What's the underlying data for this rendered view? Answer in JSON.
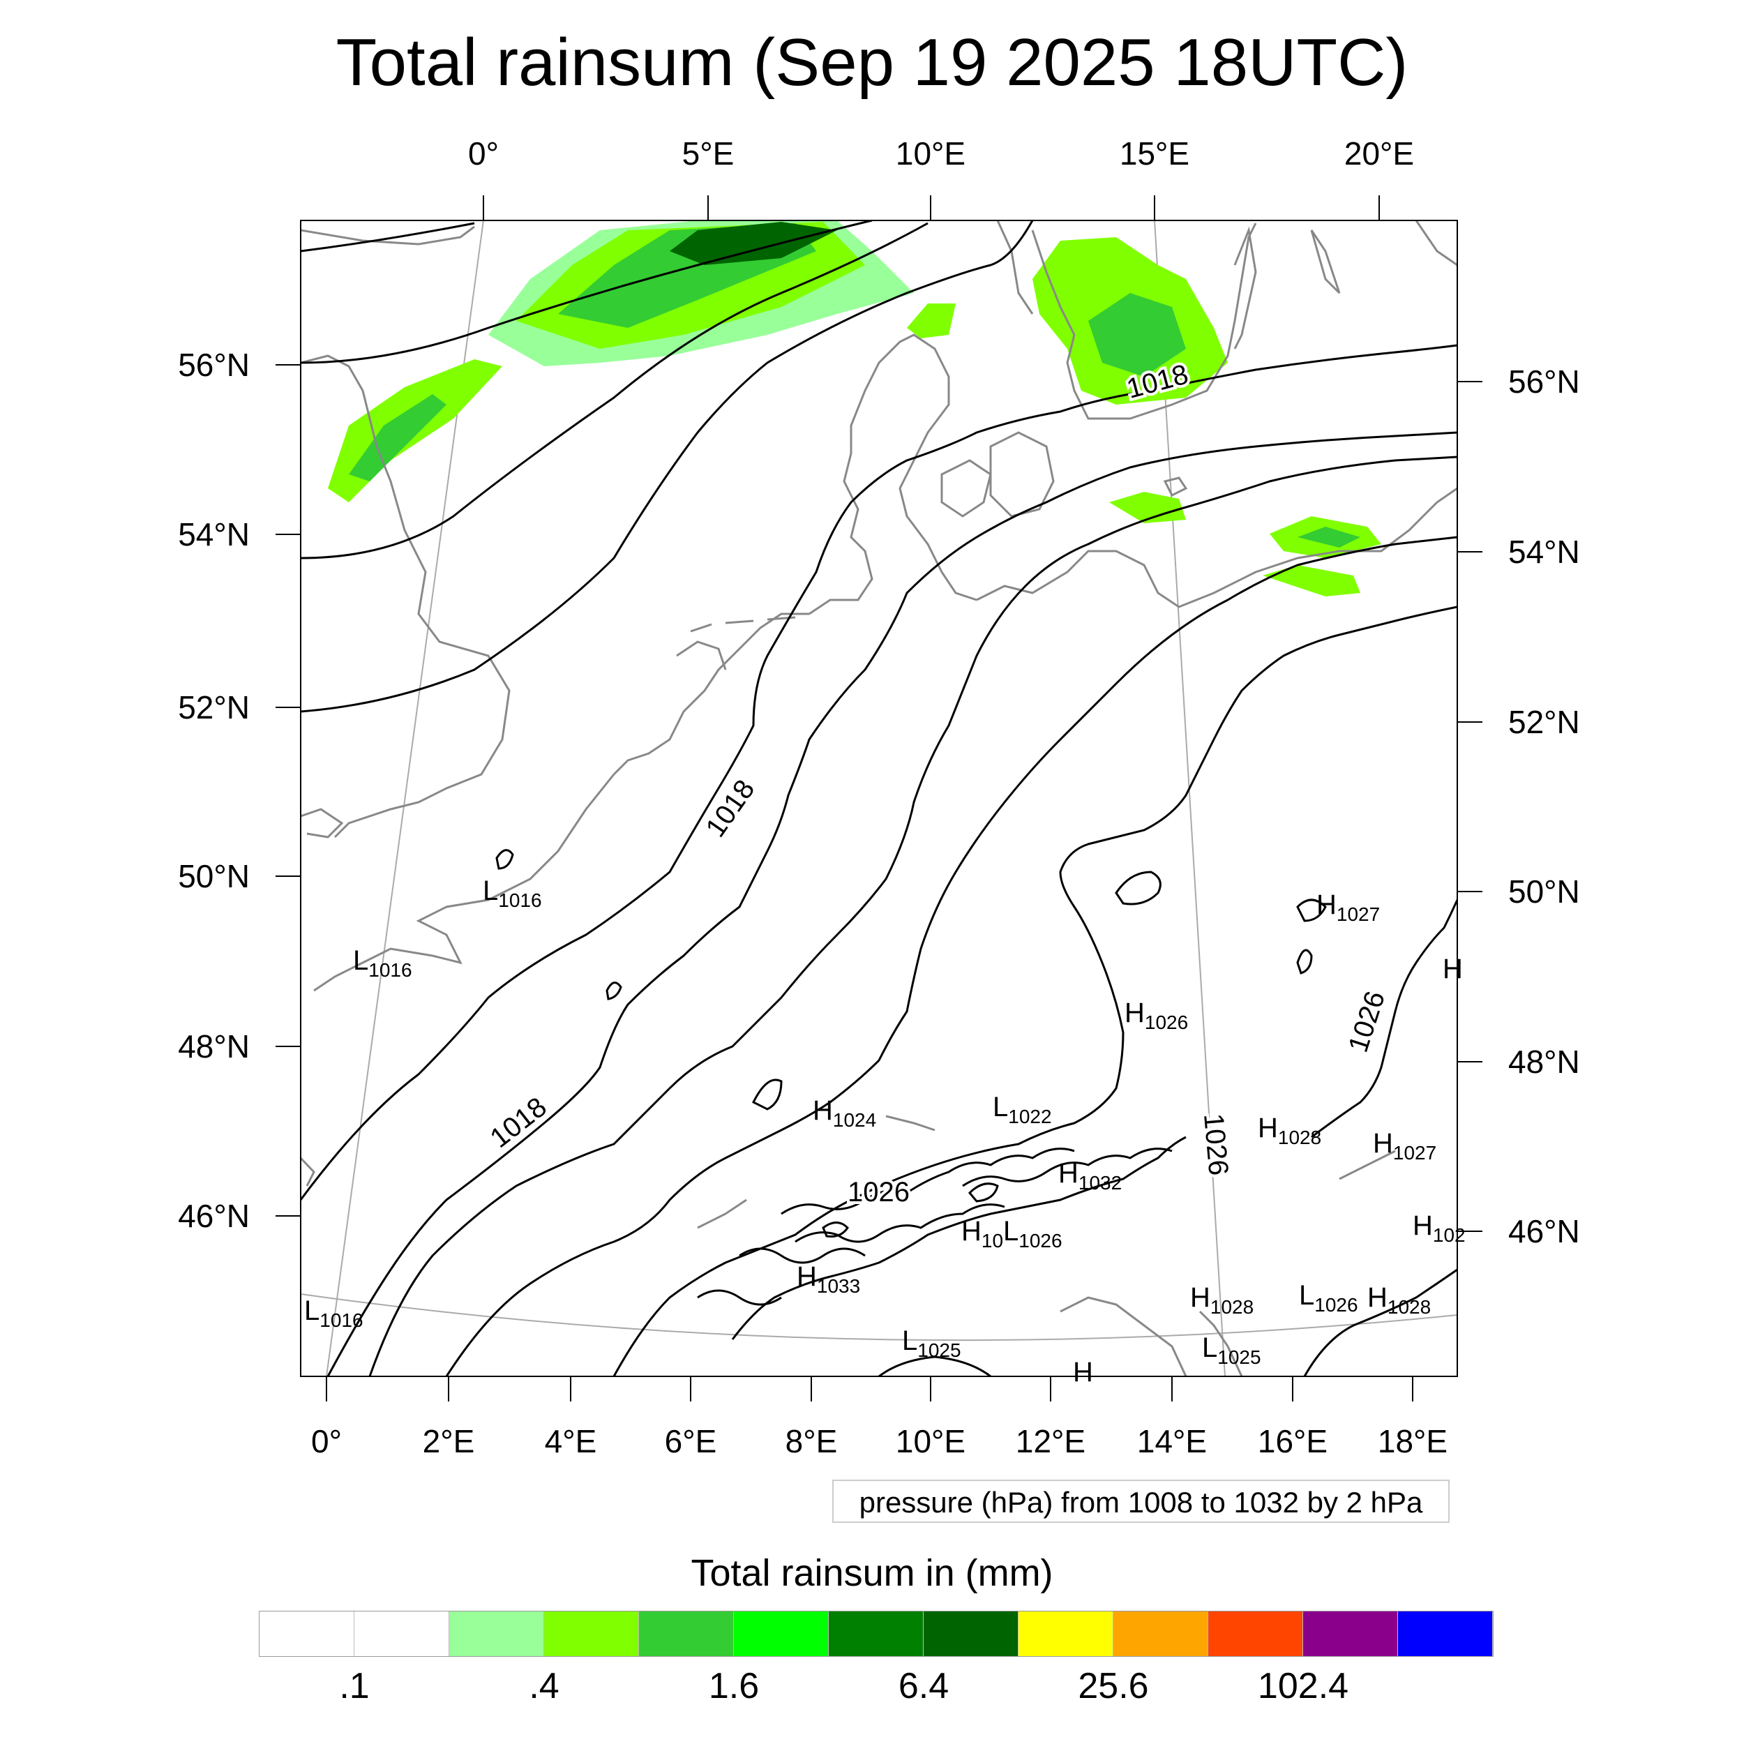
{
  "title": "Total rainsum (Sep 19 2025 18UTC)",
  "map": {
    "top_longitude_labels": [
      "0°",
      "5°E",
      "10°E",
      "15°E",
      "20°E"
    ],
    "bottom_longitude_labels": [
      "0°",
      "2°E",
      "4°E",
      "6°E",
      "8°E",
      "10°E",
      "12°E",
      "14°E",
      "16°E",
      "18°E"
    ],
    "left_latitude_labels": [
      "56°N",
      "54°N",
      "52°N",
      "50°N",
      "48°N",
      "46°N"
    ],
    "right_latitude_labels": [
      "56°N",
      "54°N",
      "52°N",
      "50°N",
      "48°N",
      "46°N"
    ],
    "isobar_labels": [
      "1018",
      "1018",
      "1018",
      "1026",
      "1026",
      "1026"
    ],
    "pressure_centers": [
      {
        "type": "L",
        "value": "1016"
      },
      {
        "type": "L",
        "value": "1016"
      },
      {
        "type": "L",
        "value": "1016"
      },
      {
        "type": "H",
        "value": "1027"
      },
      {
        "type": "H",
        "value": "1026"
      },
      {
        "type": "H",
        "value": "1024"
      },
      {
        "type": "L",
        "value": "1022"
      },
      {
        "type": "H",
        "value": "1028"
      },
      {
        "type": "H",
        "value": "1027"
      },
      {
        "type": "H",
        "value": "1032"
      },
      {
        "type": "H",
        "value": "10"
      },
      {
        "type": "L",
        "value": "1026"
      },
      {
        "type": "H",
        "value": "102"
      },
      {
        "type": "H",
        "value": "1033"
      },
      {
        "type": "H",
        "value": "1028"
      },
      {
        "type": "L",
        "value": "1026"
      },
      {
        "type": "H",
        "value": "1028"
      },
      {
        "type": "L",
        "value": "1025"
      },
      {
        "type": "L",
        "value": "1025"
      },
      {
        "type": "H",
        "value": ""
      },
      {
        "type": "H",
        "value": ""
      }
    ],
    "colors": {
      "coastline": "#888888",
      "isobar": "#000000",
      "graticule": "#aaaaaa"
    }
  },
  "info_box": "pressure (hPa) from 1008 to 1032 by 2 hPa",
  "colorbar": {
    "title": "Total rainsum in (mm)",
    "colors": [
      "#ffffff",
      "#ffffff",
      "#99ff99",
      "#80ff00",
      "#33cc33",
      "#00ff00",
      "#008000",
      "#006400",
      "#ffff00",
      "#ffa500",
      "#ff4500",
      "#8b008b",
      "#0000ff"
    ],
    "labels": [
      ".1",
      ".4",
      "1.6",
      "6.4",
      "25.6",
      "102.4"
    ]
  }
}
